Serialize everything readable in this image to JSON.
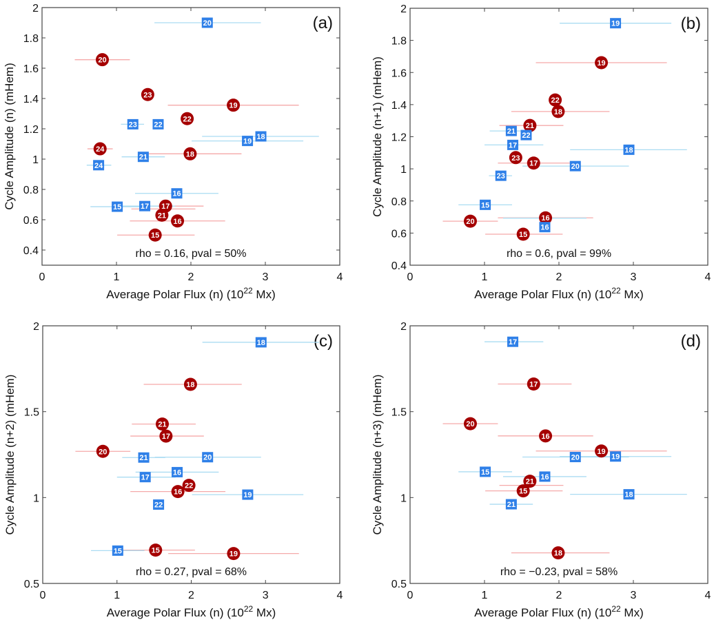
{
  "chart_data": [
    {
      "type": "scatter",
      "panel_tag": "(a)",
      "stat_text": "rho = 0.16, pval = 50%",
      "xlabel": "Average Polar Flux (n) (10",
      "xlabel_sup": "22",
      "xlabel_end": " Mx)",
      "ylabel": "Cycle Amplitude (n) (mHem)",
      "xlim": [
        0,
        4
      ],
      "ylim": [
        0.3,
        2
      ],
      "xticks": [
        "0",
        "1",
        "2",
        "3",
        "4"
      ],
      "yticks": [
        "0.4",
        "0.6",
        "0.8",
        "1",
        "1.2",
        "1.4",
        "1.6",
        "1.8",
        "2"
      ],
      "ytick_values": [
        0.4,
        0.6,
        0.8,
        1,
        1.2,
        1.4,
        1.6,
        1.8,
        2
      ],
      "series": [
        {
          "name": "red",
          "marker": "circle",
          "color": "#a50000",
          "err_color": "#f5a9a9",
          "points": [
            {
              "label": "15",
              "x": 1.52,
              "xerr": [
                1.01,
                2.05
              ],
              "y": 0.499
            },
            {
              "label": "16",
              "x": 1.82,
              "xerr": [
                1.18,
                2.46
              ],
              "y": 0.592
            },
            {
              "label": "17",
              "x": 1.66,
              "xerr": [
                1.18,
                2.17
              ],
              "y": 0.69
            },
            {
              "label": "18",
              "x": 1.99,
              "xerr": [
                1.36,
                2.68
              ],
              "y": 1.035
            },
            {
              "label": "19",
              "x": 2.57,
              "xerr": [
                1.69,
                3.45
              ],
              "y": 1.356
            },
            {
              "label": "20",
              "x": 0.81,
              "xerr": [
                0.44,
                1.18
              ],
              "y": 1.656
            },
            {
              "label": "21",
              "x": 1.61,
              "xerr": [
                1.2,
                2.06
              ],
              "y": 0.671
            },
            {
              "label": "22",
              "x": 1.95,
              "xerr": [
                1.88,
                2.02
              ],
              "y": 1.267
            },
            {
              "label": "23",
              "x": 1.42,
              "xerr": [
                1.36,
                1.48
              ],
              "y": 1.426
            },
            {
              "label": "24",
              "x": 0.78,
              "xerr": [
                0.61,
                0.95
              ],
              "y": 1.068
            }
          ]
        },
        {
          "name": "blue",
          "marker": "square",
          "color": "#2f80e8",
          "err_color": "#aadcf2",
          "points": [
            {
              "label": "15",
              "x": 1.01,
              "xerr": [
                0.65,
                1.37
              ],
              "y": 0.686
            },
            {
              "label": "16",
              "x": 1.81,
              "xerr": [
                1.25,
                2.37
              ],
              "y": 0.774
            },
            {
              "label": "17",
              "x": 1.38,
              "xerr": [
                1.0,
                1.79
              ],
              "y": 0.69
            },
            {
              "label": "18",
              "x": 2.94,
              "xerr": [
                2.15,
                3.72
              ],
              "y": 1.15
            },
            {
              "label": "19",
              "x": 2.76,
              "xerr": [
                2.01,
                3.51
              ],
              "y": 1.12
            },
            {
              "label": "20",
              "x": 2.22,
              "xerr": [
                1.51,
                2.94
              ],
              "y": 1.9
            },
            {
              "label": "21",
              "x": 1.36,
              "xerr": [
                1.07,
                1.65
              ],
              "y": 1.015
            },
            {
              "label": "22",
              "x": 1.56,
              "xerr": [
                1.49,
                1.63
              ],
              "y": 1.23
            },
            {
              "label": "23",
              "x": 1.22,
              "xerr": [
                1.06,
                1.37
              ],
              "y": 1.23
            },
            {
              "label": "24",
              "x": 0.76,
              "xerr": [
                0.6,
                0.93
              ],
              "y": 0.96
            }
          ]
        }
      ]
    },
    {
      "type": "scatter",
      "panel_tag": "(b)",
      "stat_text": "rho = 0.6, pval = 99%",
      "xlabel": "Average Polar Flux (n) (10",
      "xlabel_sup": "22",
      "xlabel_end": " Mx)",
      "ylabel": "Cycle Amplitude (n+1) (mHem)",
      "xlim": [
        0,
        4
      ],
      "ylim": [
        0.4,
        2
      ],
      "xticks": [
        "0",
        "1",
        "2",
        "3",
        "4"
      ],
      "yticks": [
        "0.4",
        "0.6",
        "0.8",
        "1",
        "1.2",
        "1.4",
        "1.6",
        "1.8",
        "2"
      ],
      "ytick_values": [
        0.4,
        0.6,
        0.8,
        1,
        1.2,
        1.4,
        1.6,
        1.8,
        2
      ],
      "series": [
        {
          "name": "red",
          "marker": "circle",
          "color": "#a50000",
          "err_color": "#f5a9a9",
          "points": [
            {
              "label": "15",
              "x": 1.52,
              "xerr": [
                1.01,
                2.05
              ],
              "y": 0.593
            },
            {
              "label": "16",
              "x": 1.82,
              "xerr": [
                1.18,
                2.46
              ],
              "y": 0.695
            },
            {
              "label": "17",
              "x": 1.66,
              "xerr": [
                1.18,
                2.17
              ],
              "y": 1.036
            },
            {
              "label": "18",
              "x": 1.99,
              "xerr": [
                1.36,
                2.68
              ],
              "y": 1.357
            },
            {
              "label": "19",
              "x": 2.57,
              "xerr": [
                1.69,
                3.45
              ],
              "y": 1.661
            },
            {
              "label": "20",
              "x": 0.81,
              "xerr": [
                0.44,
                1.18
              ],
              "y": 0.674
            },
            {
              "label": "21",
              "x": 1.61,
              "xerr": [
                1.2,
                2.06
              ],
              "y": 1.27
            },
            {
              "label": "22",
              "x": 1.95,
              "xerr": [
                1.88,
                2.02
              ],
              "y": 1.429
            },
            {
              "label": "23",
              "x": 1.42,
              "xerr": [
                1.36,
                1.48
              ],
              "y": 1.07
            }
          ]
        },
        {
          "name": "blue",
          "marker": "square",
          "color": "#2f80e8",
          "err_color": "#aadcf2",
          "points": [
            {
              "label": "15",
              "x": 1.01,
              "xerr": [
                0.65,
                1.37
              ],
              "y": 0.776
            },
            {
              "label": "16",
              "x": 1.81,
              "xerr": [
                1.25,
                2.37
              ],
              "y": 0.693
            },
            {
              "label": "17",
              "x": 1.38,
              "xerr": [
                1.0,
                1.79
              ],
              "y": 1.149
            },
            {
              "label": "18",
              "x": 2.94,
              "xerr": [
                2.15,
                3.72
              ],
              "y": 1.119
            },
            {
              "label": "19",
              "x": 2.76,
              "xerr": [
                2.01,
                3.51
              ],
              "y": 1.907
            },
            {
              "label": "20",
              "x": 2.22,
              "xerr": [
                1.51,
                2.94
              ],
              "y": 1.017
            },
            {
              "label": "21",
              "x": 1.36,
              "xerr": [
                1.07,
                1.65
              ],
              "y": 1.236
            },
            {
              "label": "22",
              "x": 1.56,
              "xerr": [
                1.49,
                1.63
              ],
              "y": 1.236
            },
            {
              "label": "23",
              "x": 1.22,
              "xerr": [
                1.06,
                1.37
              ],
              "y": 0.957
            }
          ]
        }
      ]
    },
    {
      "type": "scatter",
      "panel_tag": "(c)",
      "stat_text": "rho = 0.27, pval = 68%",
      "xlabel": "Average Polar Flux (n) (10",
      "xlabel_sup": "22",
      "xlabel_end": " Mx)",
      "ylabel": "Cycle Amplitude (n+2) (mHem)",
      "xlim": [
        0,
        4
      ],
      "ylim": [
        0.5,
        2
      ],
      "xticks": [
        "0",
        "1",
        "2",
        "3",
        "4"
      ],
      "yticks": [
        "0.5",
        "1",
        "1.5",
        "2"
      ],
      "ytick_values": [
        0.5,
        1,
        1.5,
        2
      ],
      "series": [
        {
          "name": "red",
          "marker": "circle",
          "color": "#a50000",
          "err_color": "#f5a9a9",
          "points": [
            {
              "label": "15",
              "x": 1.52,
              "xerr": [
                1.01,
                2.05
              ],
              "y": 0.694
            },
            {
              "label": "16",
              "x": 1.82,
              "xerr": [
                1.18,
                2.46
              ],
              "y": 1.035
            },
            {
              "label": "17",
              "x": 1.66,
              "xerr": [
                1.18,
                2.17
              ],
              "y": 1.358
            },
            {
              "label": "18",
              "x": 1.99,
              "xerr": [
                1.36,
                2.68
              ],
              "y": 1.659
            },
            {
              "label": "19",
              "x": 2.57,
              "xerr": [
                1.69,
                3.45
              ],
              "y": 0.674
            },
            {
              "label": "20",
              "x": 0.81,
              "xerr": [
                0.44,
                1.18
              ],
              "y": 1.269
            },
            {
              "label": "21",
              "x": 1.61,
              "xerr": [
                1.2,
                2.06
              ],
              "y": 1.428
            },
            {
              "label": "22",
              "x": 1.95,
              "xerr": [
                1.88,
                2.02
              ],
              "y": 1.071
            }
          ]
        },
        {
          "name": "blue",
          "marker": "square",
          "color": "#2f80e8",
          "err_color": "#aadcf2",
          "points": [
            {
              "label": "15",
              "x": 1.01,
              "xerr": [
                0.65,
                1.37
              ],
              "y": 0.691
            },
            {
              "label": "16",
              "x": 1.81,
              "xerr": [
                1.25,
                2.37
              ],
              "y": 1.148
            },
            {
              "label": "17",
              "x": 1.38,
              "xerr": [
                1.0,
                1.79
              ],
              "y": 1.119
            },
            {
              "label": "18",
              "x": 2.94,
              "xerr": [
                2.15,
                3.72
              ],
              "y": 1.904
            },
            {
              "label": "19",
              "x": 2.76,
              "xerr": [
                2.01,
                3.51
              ],
              "y": 1.017
            },
            {
              "label": "20",
              "x": 2.22,
              "xerr": [
                1.51,
                2.94
              ],
              "y": 1.235
            },
            {
              "label": "21",
              "x": 1.36,
              "xerr": [
                1.07,
                1.65
              ],
              "y": 1.233
            },
            {
              "label": "22",
              "x": 1.56,
              "xerr": [
                1.49,
                1.63
              ],
              "y": 0.959
            }
          ]
        }
      ]
    },
    {
      "type": "scatter",
      "panel_tag": "(d)",
      "stat_text": "rho = −0.23, pval = 58%",
      "xlabel": "Average Polar Flux (n) (10",
      "xlabel_sup": "22",
      "xlabel_end": " Mx)",
      "ylabel": "Cycle Amplitude (n+3) (mHem)",
      "xlim": [
        0,
        4
      ],
      "ylim": [
        0.5,
        2
      ],
      "xticks": [
        "0",
        "1",
        "2",
        "3",
        "4"
      ],
      "yticks": [
        "0.5",
        "1",
        "1.5",
        "2"
      ],
      "ytick_values": [
        0.5,
        1,
        1.5,
        2
      ],
      "series": [
        {
          "name": "red",
          "marker": "circle",
          "color": "#a50000",
          "err_color": "#f5a9a9",
          "points": [
            {
              "label": "15",
              "x": 1.52,
              "xerr": [
                1.01,
                2.05
              ],
              "y": 1.039
            },
            {
              "label": "16",
              "x": 1.82,
              "xerr": [
                1.18,
                2.46
              ],
              "y": 1.359
            },
            {
              "label": "17",
              "x": 1.66,
              "xerr": [
                1.18,
                2.17
              ],
              "y": 1.661
            },
            {
              "label": "18",
              "x": 1.99,
              "xerr": [
                1.36,
                2.68
              ],
              "y": 0.678
            },
            {
              "label": "19",
              "x": 2.57,
              "xerr": [
                1.69,
                3.45
              ],
              "y": 1.271
            },
            {
              "label": "20",
              "x": 0.81,
              "xerr": [
                0.44,
                1.18
              ],
              "y": 1.43
            },
            {
              "label": "21",
              "x": 1.61,
              "xerr": [
                1.2,
                2.06
              ],
              "y": 1.071
            }
          ]
        },
        {
          "name": "blue",
          "marker": "square",
          "color": "#2f80e8",
          "err_color": "#aadcf2",
          "points": [
            {
              "label": "15",
              "x": 1.01,
              "xerr": [
                0.65,
                1.37
              ],
              "y": 1.15
            },
            {
              "label": "16",
              "x": 1.81,
              "xerr": [
                1.25,
                2.37
              ],
              "y": 1.122
            },
            {
              "label": "17",
              "x": 1.38,
              "xerr": [
                1.0,
                1.79
              ],
              "y": 1.907
            },
            {
              "label": "18",
              "x": 2.94,
              "xerr": [
                2.15,
                3.72
              ],
              "y": 1.019
            },
            {
              "label": "19",
              "x": 2.76,
              "xerr": [
                2.01,
                3.51
              ],
              "y": 1.239
            },
            {
              "label": "20",
              "x": 2.22,
              "xerr": [
                1.51,
                2.94
              ],
              "y": 1.236
            },
            {
              "label": "21",
              "x": 1.36,
              "xerr": [
                1.07,
                1.65
              ],
              "y": 0.961
            }
          ]
        }
      ]
    }
  ]
}
